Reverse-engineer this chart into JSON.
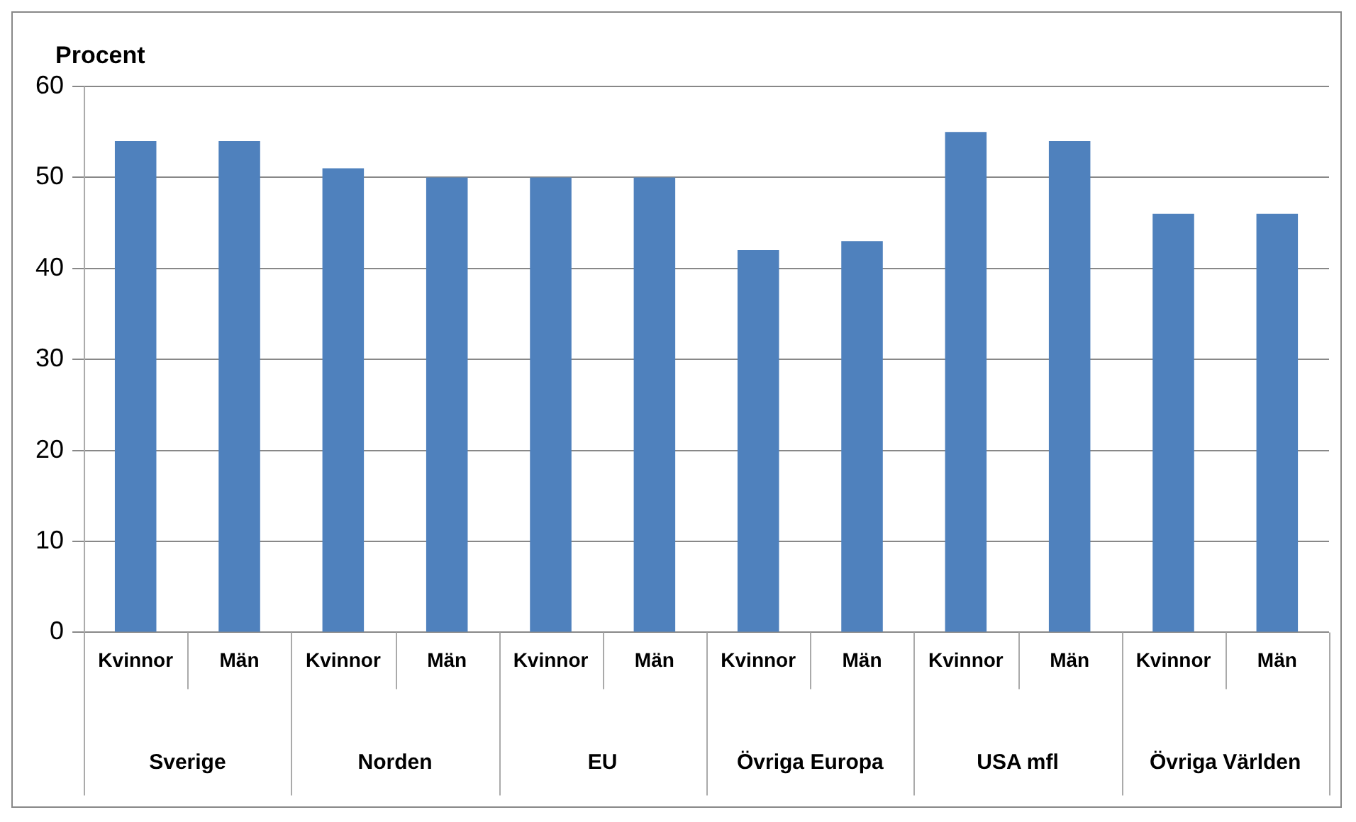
{
  "chart_data": {
    "type": "bar",
    "ylabel": "Procent",
    "categories": [
      "Kvinnor",
      "Män",
      "Kvinnor",
      "Män",
      "Kvinnor",
      "Män",
      "Kvinnor",
      "Män",
      "Kvinnor",
      "Män",
      "Kvinnor",
      "Män"
    ],
    "annotations": [
      "Sverige",
      "Norden",
      "EU",
      "Övriga Europa",
      "USA mfl",
      "Övriga Världen"
    ],
    "values": [
      54,
      54,
      51,
      50,
      50,
      50,
      42,
      43,
      55,
      54,
      46,
      46
    ],
    "color": "#4f81bd",
    "ylim": [
      0,
      60
    ],
    "yticks": [
      0,
      10,
      20,
      30,
      40,
      50,
      60
    ],
    "grid": "y",
    "legend": false
  }
}
